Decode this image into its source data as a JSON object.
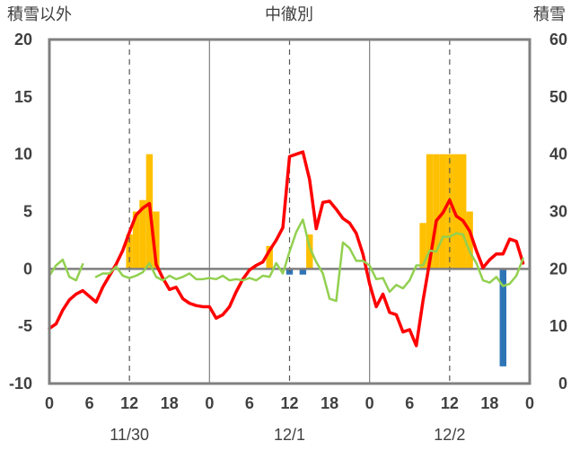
{
  "chart_data": {
    "type": "bar+line",
    "title": "中徹別",
    "left_axis_title": "積雪以外",
    "right_axis_title": "積雪",
    "left_ylim": [
      -10,
      20
    ],
    "left_ticks": [
      20,
      15,
      10,
      5,
      0,
      -5,
      -10
    ],
    "right_ylim": [
      0,
      60
    ],
    "right_ticks": [
      60,
      50,
      40,
      30,
      20,
      10,
      0
    ],
    "x_range_hours": [
      0,
      72
    ],
    "x_tick_hours": [
      0,
      6,
      12,
      18,
      24,
      30,
      36,
      42,
      48,
      54,
      60,
      66,
      72
    ],
    "x_tick_labels": [
      "0",
      "6",
      "12",
      "18",
      "0",
      "6",
      "12",
      "18",
      "0",
      "6",
      "12",
      "18",
      "0"
    ],
    "date_labels": [
      {
        "text": "11/30",
        "hour": 12
      },
      {
        "text": "12/1",
        "hour": 36
      },
      {
        "text": "12/2",
        "hour": 60
      }
    ],
    "day_boundaries_hours": [
      24,
      48
    ],
    "dashed_grid_hours": [
      12,
      36,
      60
    ],
    "grid": "vertical only",
    "colors": {
      "precipitation": "#ffc000",
      "temperature": "#ff0000",
      "wind": "#92d050",
      "snow_change": "#2e75b6",
      "baseline": "#7030a0",
      "zero_line": "#7f7f7f",
      "frame": "#808080"
    },
    "series": [
      {
        "kind": "bar",
        "axis": "left",
        "color": "#ffc000",
        "points": [
          {
            "h": 12,
            "v": 3
          },
          {
            "h": 13,
            "v": 5
          },
          {
            "h": 14,
            "v": 6
          },
          {
            "h": 15,
            "v": 10
          },
          {
            "h": 16,
            "v": 5
          },
          {
            "h": 33,
            "v": 2
          },
          {
            "h": 39,
            "v": 3
          },
          {
            "h": 56,
            "v": 4
          },
          {
            "h": 57,
            "v": 10
          },
          {
            "h": 58,
            "v": 10
          },
          {
            "h": 59,
            "v": 10
          },
          {
            "h": 60,
            "v": 10
          },
          {
            "h": 61,
            "v": 10
          },
          {
            "h": 62,
            "v": 10
          },
          {
            "h": 63,
            "v": 5
          }
        ]
      },
      {
        "kind": "bar",
        "axis": "left",
        "color": "#2e75b6",
        "points": [
          {
            "h": 36,
            "v": -0.5
          },
          {
            "h": 38,
            "v": -0.5
          },
          {
            "h": 68,
            "v": -8.5
          }
        ]
      },
      {
        "kind": "line",
        "axis": "left",
        "color": "#ff0000",
        "width": 3.5,
        "points": [
          {
            "h": 0,
            "v": -5.2
          },
          {
            "h": 1,
            "v": -4.8
          },
          {
            "h": 2,
            "v": -3.6
          },
          {
            "h": 3,
            "v": -2.7
          },
          {
            "h": 4,
            "v": -2.2
          },
          {
            "h": 5,
            "v": -1.9
          },
          {
            "h": 6,
            "v": -2.4
          },
          {
            "h": 7,
            "v": -2.9
          },
          {
            "h": 8,
            "v": -1.6
          },
          {
            "h": 9,
            "v": -0.6
          },
          {
            "h": 10,
            "v": 0.4
          },
          {
            "h": 11,
            "v": 1.6
          },
          {
            "h": 12,
            "v": 3.2
          },
          {
            "h": 13,
            "v": 4.7
          },
          {
            "h": 14,
            "v": 5.3
          },
          {
            "h": 15,
            "v": 5.7
          },
          {
            "h": 16,
            "v": 0.4
          },
          {
            "h": 17,
            "v": -0.8
          },
          {
            "h": 18,
            "v": -1.8
          },
          {
            "h": 19,
            "v": -1.6
          },
          {
            "h": 20,
            "v": -2.6
          },
          {
            "h": 21,
            "v": -3.0
          },
          {
            "h": 22,
            "v": -3.2
          },
          {
            "h": 23,
            "v": -3.3
          },
          {
            "h": 24,
            "v": -3.3
          },
          {
            "h": 25,
            "v": -4.3
          },
          {
            "h": 26,
            "v": -4.0
          },
          {
            "h": 27,
            "v": -3.3
          },
          {
            "h": 28,
            "v": -2.0
          },
          {
            "h": 29,
            "v": -0.9
          },
          {
            "h": 30,
            "v": -0.1
          },
          {
            "h": 31,
            "v": 0.3
          },
          {
            "h": 32,
            "v": 0.6
          },
          {
            "h": 33,
            "v": 1.6
          },
          {
            "h": 34,
            "v": 2.5
          },
          {
            "h": 35,
            "v": 3.6
          },
          {
            "h": 36,
            "v": 9.8
          },
          {
            "h": 37,
            "v": 10.0
          },
          {
            "h": 38,
            "v": 10.2
          },
          {
            "h": 39,
            "v": 7.8
          },
          {
            "h": 40,
            "v": 3.5
          },
          {
            "h": 41,
            "v": 5.8
          },
          {
            "h": 42,
            "v": 5.9
          },
          {
            "h": 43,
            "v": 5.2
          },
          {
            "h": 44,
            "v": 4.4
          },
          {
            "h": 45,
            "v": 4.0
          },
          {
            "h": 46,
            "v": 3.1
          },
          {
            "h": 47,
            "v": 1.3
          },
          {
            "h": 48,
            "v": -1.3
          },
          {
            "h": 49,
            "v": -3.3
          },
          {
            "h": 50,
            "v": -2.2
          },
          {
            "h": 51,
            "v": -3.8
          },
          {
            "h": 52,
            "v": -4.0
          },
          {
            "h": 53,
            "v": -5.5
          },
          {
            "h": 54,
            "v": -5.3
          },
          {
            "h": 55,
            "v": -6.7
          },
          {
            "h": 56,
            "v": -2.8
          },
          {
            "h": 57,
            "v": 0.6
          },
          {
            "h": 58,
            "v": 4.2
          },
          {
            "h": 59,
            "v": 4.9
          },
          {
            "h": 60,
            "v": 6.0
          },
          {
            "h": 61,
            "v": 4.6
          },
          {
            "h": 62,
            "v": 4.2
          },
          {
            "h": 63,
            "v": 3.3
          },
          {
            "h": 64,
            "v": 1.6
          },
          {
            "h": 65,
            "v": 0.1
          },
          {
            "h": 66,
            "v": 0.8
          },
          {
            "h": 67,
            "v": 1.3
          },
          {
            "h": 68,
            "v": 1.3
          },
          {
            "h": 69,
            "v": 2.6
          },
          {
            "h": 70,
            "v": 2.4
          },
          {
            "h": 71,
            "v": 0.5
          }
        ]
      },
      {
        "kind": "line",
        "axis": "left",
        "color": "#92d050",
        "width": 2.5,
        "points": [
          {
            "h": 0,
            "v": -0.6
          },
          {
            "h": 1,
            "v": 0.3
          },
          {
            "h": 2,
            "v": 0.8
          },
          {
            "h": 3,
            "v": -0.7
          },
          {
            "h": 4,
            "v": -1.0
          },
          {
            "h": 5,
            "v": 0.4
          },
          {
            "h": 6,
            "v": null
          },
          {
            "h": 7,
            "v": -0.7
          },
          {
            "h": 8,
            "v": -0.4
          },
          {
            "h": 9,
            "v": -0.4
          },
          {
            "h": 10,
            "v": 0.2
          },
          {
            "h": 11,
            "v": -0.6
          },
          {
            "h": 12,
            "v": -0.8
          },
          {
            "h": 13,
            "v": -0.6
          },
          {
            "h": 14,
            "v": -0.3
          },
          {
            "h": 15,
            "v": 0.5
          },
          {
            "h": 16,
            "v": -0.7
          },
          {
            "h": 17,
            "v": -1.0
          },
          {
            "h": 18,
            "v": -0.6
          },
          {
            "h": 19,
            "v": -0.9
          },
          {
            "h": 20,
            "v": -0.7
          },
          {
            "h": 21,
            "v": -0.4
          },
          {
            "h": 22,
            "v": -0.9
          },
          {
            "h": 23,
            "v": -0.9
          },
          {
            "h": 24,
            "v": -0.8
          },
          {
            "h": 25,
            "v": -0.9
          },
          {
            "h": 26,
            "v": -0.6
          },
          {
            "h": 27,
            "v": -1.0
          },
          {
            "h": 28,
            "v": -0.9
          },
          {
            "h": 29,
            "v": -1.0
          },
          {
            "h": 30,
            "v": -0.8
          },
          {
            "h": 31,
            "v": -1.0
          },
          {
            "h": 32,
            "v": -0.6
          },
          {
            "h": 33,
            "v": -0.7
          },
          {
            "h": 34,
            "v": 0.5
          },
          {
            "h": 35,
            "v": -0.4
          },
          {
            "h": 36,
            "v": 1.5
          },
          {
            "h": 37,
            "v": 3.2
          },
          {
            "h": 38,
            "v": 4.3
          },
          {
            "h": 39,
            "v": 1.9
          },
          {
            "h": 40,
            "v": 0.6
          },
          {
            "h": 41,
            "v": -0.4
          },
          {
            "h": 42,
            "v": -2.6
          },
          {
            "h": 43,
            "v": -2.8
          },
          {
            "h": 44,
            "v": 2.3
          },
          {
            "h": 45,
            "v": 1.8
          },
          {
            "h": 46,
            "v": 0.7
          },
          {
            "h": 47,
            "v": 0.7
          },
          {
            "h": 48,
            "v": 0.3
          },
          {
            "h": 49,
            "v": -0.9
          },
          {
            "h": 50,
            "v": -0.8
          },
          {
            "h": 51,
            "v": -2.0
          },
          {
            "h": 52,
            "v": -1.4
          },
          {
            "h": 53,
            "v": -1.7
          },
          {
            "h": 54,
            "v": -1.0
          },
          {
            "h": 55,
            "v": 0.3
          },
          {
            "h": 56,
            "v": 0.3
          },
          {
            "h": 57,
            "v": 1.6
          },
          {
            "h": 58,
            "v": 1.5
          },
          {
            "h": 59,
            "v": 2.8
          },
          {
            "h": 60,
            "v": 2.8
          },
          {
            "h": 61,
            "v": 3.1
          },
          {
            "h": 62,
            "v": 3.0
          },
          {
            "h": 63,
            "v": 1.5
          },
          {
            "h": 64,
            "v": 0.5
          },
          {
            "h": 65,
            "v": -1.0
          },
          {
            "h": 66,
            "v": -1.2
          },
          {
            "h": 67,
            "v": -0.7
          },
          {
            "h": 68,
            "v": -1.5
          },
          {
            "h": 69,
            "v": -1.3
          },
          {
            "h": 70,
            "v": -0.6
          },
          {
            "h": 71,
            "v": 0.9
          }
        ]
      },
      {
        "kind": "line",
        "axis": "right",
        "color": "#7030a0",
        "width": 3,
        "points": [
          {
            "h": 0,
            "v": 0
          },
          {
            "h": 72,
            "v": 0
          }
        ]
      }
    ]
  }
}
